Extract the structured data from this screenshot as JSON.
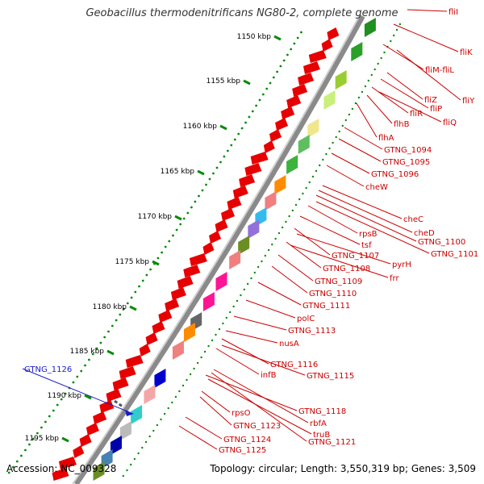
{
  "title": "Geobacillus thermodenitrificans NG80-2, complete genome",
  "footer": {
    "accession": "Accession: NC_009328",
    "topology": "Topology: circular; Length: 3,550,319 bp; Genes: 3,509"
  },
  "colors": {
    "label_red": "#cc0000",
    "label_blue": "#1a1acc",
    "backbone_gray": "#8a8a8a",
    "gene_arrow_red": "#e60000",
    "dot_green": "#0a8a0a"
  },
  "kbp_ticks": [
    "1150 kbp",
    "1155 kbp",
    "1160 kbp",
    "1165 kbp",
    "1170 kbp",
    "1175 kbp",
    "1180 kbp",
    "1185 kbp",
    "1190 kbp",
    "1195 kbp"
  ],
  "gene_labels": [
    {
      "text": "fliI",
      "color": "red"
    },
    {
      "text": "fliK",
      "color": "red"
    },
    {
      "text": "fliM-fliL",
      "color": "red"
    },
    {
      "text": "fliY",
      "color": "red"
    },
    {
      "text": "fliZ",
      "color": "red"
    },
    {
      "text": "fliP",
      "color": "red"
    },
    {
      "text": "fliR",
      "color": "red"
    },
    {
      "text": "fliQ",
      "color": "red"
    },
    {
      "text": "flhB",
      "color": "red"
    },
    {
      "text": "flhA",
      "color": "red"
    },
    {
      "text": "GTNG_1094",
      "color": "red"
    },
    {
      "text": "GTNG_1095",
      "color": "red"
    },
    {
      "text": "GTNG_1096",
      "color": "red"
    },
    {
      "text": "cheW",
      "color": "red"
    },
    {
      "text": "cheC",
      "color": "red"
    },
    {
      "text": "rpsB",
      "color": "red"
    },
    {
      "text": "cheD",
      "color": "red"
    },
    {
      "text": "GTNG_1100",
      "color": "red"
    },
    {
      "text": "tsf",
      "color": "red"
    },
    {
      "text": "GTNG_1101",
      "color": "red"
    },
    {
      "text": "GTNG_1107",
      "color": "red"
    },
    {
      "text": "pyrH",
      "color": "red"
    },
    {
      "text": "GTNG_1108",
      "color": "red"
    },
    {
      "text": "frr",
      "color": "red"
    },
    {
      "text": "GTNG_1109",
      "color": "red"
    },
    {
      "text": "GTNG_1110",
      "color": "red"
    },
    {
      "text": "GTNG_1111",
      "color": "red"
    },
    {
      "text": "polC",
      "color": "red"
    },
    {
      "text": "GTNG_1113",
      "color": "red"
    },
    {
      "text": "nusA",
      "color": "red"
    },
    {
      "text": "GTNG_1116",
      "color": "red"
    },
    {
      "text": "infB",
      "color": "red"
    },
    {
      "text": "GTNG_1115",
      "color": "red"
    },
    {
      "text": "GTNG_1126",
      "color": "blue"
    },
    {
      "text": "GTNG_1118",
      "color": "red"
    },
    {
      "text": "rpsO",
      "color": "red"
    },
    {
      "text": "rbfA",
      "color": "red"
    },
    {
      "text": "GTNG_1123",
      "color": "red"
    },
    {
      "text": "truB",
      "color": "red"
    },
    {
      "text": "GTNG_1124",
      "color": "red"
    },
    {
      "text": "GTNG_1121",
      "color": "red"
    },
    {
      "text": "GTNG_1125",
      "color": "red"
    }
  ]
}
